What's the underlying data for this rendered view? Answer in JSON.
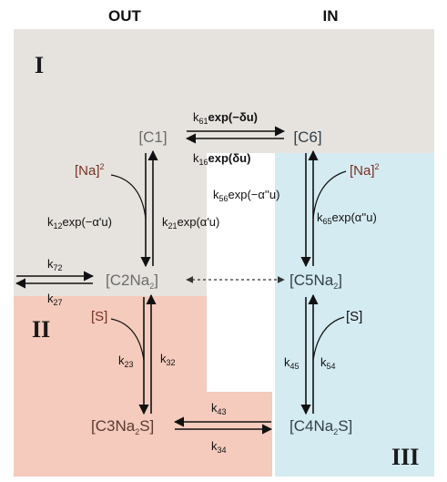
{
  "headers": {
    "out": "OUT",
    "in": "IN"
  },
  "regions": {
    "I": "I",
    "II": "II",
    "III": "III"
  },
  "states": {
    "c1": "[C1]",
    "c6": "[C6]",
    "c2_main": "[C2Na",
    "c2_sub": "2",
    "c2_close": "]",
    "c5_main": "[C5Na",
    "c5_sub": "2",
    "c5_close": "]",
    "c3_main": "[C3Na",
    "c3_sub": "2",
    "c3_tail": "S]",
    "c4_main": "[C4Na",
    "c4_sub": "2",
    "c4_tail": "S]"
  },
  "ligands": {
    "na_out": "[Na]",
    "na_out_sup": "2",
    "na_in": "[Na]",
    "na_in_sup": "2",
    "s_out": "[S]",
    "s_in": "[S]"
  },
  "rates": {
    "k61": {
      "k": "k",
      "sub": "61",
      "expr": "exp(−δu)"
    },
    "k16": {
      "k": "k",
      "sub": "16",
      "expr": "exp(δu)"
    },
    "k12": {
      "k": "k",
      "sub": "12",
      "expr": "exp(−α'u)"
    },
    "k21": {
      "k": "k",
      "sub": "21",
      "expr": "exp(α'u)"
    },
    "k56": {
      "k": "k",
      "sub": "56",
      "expr": "exp(−α''u)"
    },
    "k65": {
      "k": "k",
      "sub": "65",
      "expr": "exp(α''u)"
    },
    "k72": {
      "k": "k",
      "sub": "72"
    },
    "k27": {
      "k": "k",
      "sub": "27"
    },
    "k23": {
      "k": "k",
      "sub": "23"
    },
    "k32": {
      "k": "k",
      "sub": "32"
    },
    "k45": {
      "k": "k",
      "sub": "45"
    },
    "k54": {
      "k": "k",
      "sub": "54"
    },
    "k43": {
      "k": "k",
      "sub": "43"
    },
    "k34": {
      "k": "k",
      "sub": "34"
    }
  },
  "colors": {
    "region_I": "#e6e3de",
    "region_II": "#f4cbbd",
    "region_III": "#d4ebf1",
    "state_gray": "#6b6b6b",
    "state_dark": "#33414a",
    "ligand_red": "#7a2f22"
  }
}
